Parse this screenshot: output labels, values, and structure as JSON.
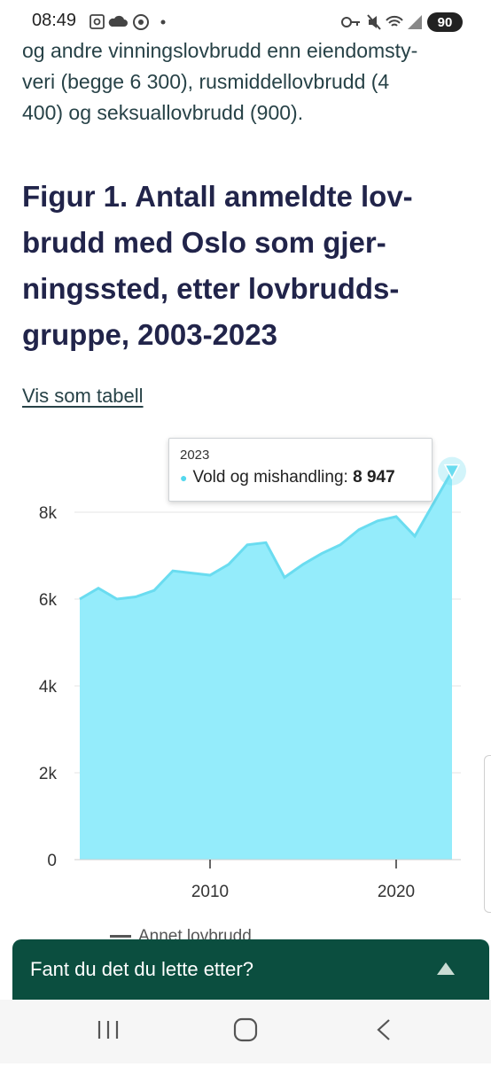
{
  "status_bar": {
    "time": "08:49",
    "left_icons": [
      "screenshot-icon",
      "cloud-icon",
      "chrome-icon",
      "dot-icon"
    ],
    "right_icons": [
      "key-icon",
      "mute-icon",
      "wifi-icon",
      "signal-icon"
    ],
    "battery": "90"
  },
  "article": {
    "intro_lines": [
      "og andre vinningslovbrudd enn eiendomsty-",
      "veri (begge 6 300), rusmiddellovbrudd (4",
      "400) og seksuallovbrudd (900)."
    ]
  },
  "figure": {
    "title_lines": [
      "Figur 1. Antall anmeldte lov-",
      "brudd med Oslo som gjer-",
      "ningssted, etter lovbrudds-",
      "gruppe, 2003-2023"
    ],
    "table_link": "Vis som tabell"
  },
  "chart_data": {
    "type": "area",
    "x": [
      2003,
      2004,
      2005,
      2006,
      2007,
      2008,
      2009,
      2010,
      2011,
      2012,
      2013,
      2014,
      2015,
      2016,
      2017,
      2018,
      2019,
      2020,
      2021,
      2022,
      2023
    ],
    "series": [
      {
        "name": "Vold og mishandling",
        "values": [
          6000,
          6250,
          6000,
          6050,
          6200,
          6650,
          6600,
          6550,
          6800,
          7250,
          7300,
          6500,
          6800,
          7050,
          7250,
          7600,
          7800,
          7900,
          7450,
          8200,
          8947
        ]
      }
    ],
    "xlim": [
      2003,
      2023
    ],
    "ylim": [
      0,
      9000
    ],
    "y_ticks": [
      0,
      2000,
      4000,
      6000,
      8000
    ],
    "y_tick_labels": [
      "0",
      "2k",
      "4k",
      "6k",
      "8k"
    ],
    "x_ticks": [
      2010,
      2020
    ],
    "x_tick_labels": [
      "2010",
      "2020"
    ],
    "grid": true,
    "fill_color": "#94ecfb",
    "line_color": "#6adcf0",
    "tooltip": {
      "year": "2023",
      "series": "Vold og mishandling:",
      "value": "8 947"
    },
    "legend_partial": "Annet lovbrudd"
  },
  "feedback": {
    "text": "Fant du det du lette etter?"
  },
  "nav": {
    "buttons": [
      "recent-apps-button",
      "home-button",
      "back-button"
    ]
  },
  "colors": {
    "title": "#21244a",
    "body_text": "#274247",
    "banner": "#0b4e3f",
    "area_fill": "#94ecfb",
    "area_line": "#6adcf0"
  }
}
